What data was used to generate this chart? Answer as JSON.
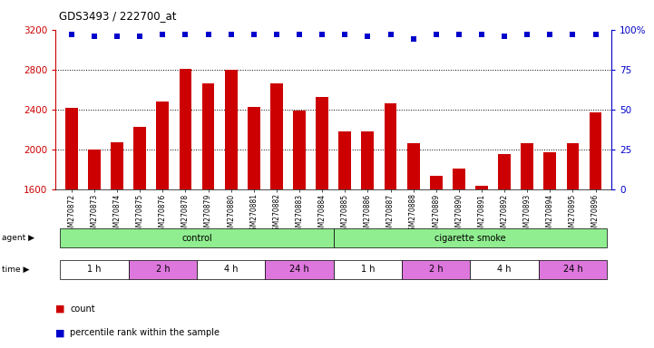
{
  "title": "GDS3493 / 222700_at",
  "samples": [
    "GSM270872",
    "GSM270873",
    "GSM270874",
    "GSM270875",
    "GSM270876",
    "GSM270878",
    "GSM270879",
    "GSM270880",
    "GSM270881",
    "GSM270882",
    "GSM270883",
    "GSM270884",
    "GSM270885",
    "GSM270886",
    "GSM270887",
    "GSM270888",
    "GSM270889",
    "GSM270890",
    "GSM270891",
    "GSM270892",
    "GSM270893",
    "GSM270894",
    "GSM270895",
    "GSM270896"
  ],
  "counts": [
    2420,
    2000,
    2070,
    2230,
    2480,
    2810,
    2660,
    2800,
    2430,
    2660,
    2390,
    2530,
    2180,
    2180,
    2460,
    2060,
    1740,
    1810,
    1640,
    1960,
    2060,
    1970,
    2060,
    2370
  ],
  "percentile_ranks": [
    97,
    96,
    96,
    96,
    97,
    97,
    97,
    97,
    97,
    97,
    97,
    97,
    97,
    96,
    97,
    94,
    97,
    97,
    97,
    96,
    97,
    97,
    97,
    97
  ],
  "bar_color": "#cc0000",
  "dot_color": "#0000cc",
  "ylim_left": [
    1600,
    3200
  ],
  "yticks_left": [
    1600,
    2000,
    2400,
    2800,
    3200
  ],
  "ylim_right": [
    0,
    100
  ],
  "yticks_right": [
    0,
    25,
    50,
    75,
    100
  ],
  "agent_spans": [
    {
      "label": "control",
      "start": 0,
      "end": 11,
      "color": "#90ee90"
    },
    {
      "label": "cigarette smoke",
      "start": 12,
      "end": 23,
      "color": "#90ee90"
    }
  ],
  "time_spans": [
    {
      "label": "1 h",
      "start": 0,
      "end": 2,
      "color": "#ffffff"
    },
    {
      "label": "2 h",
      "start": 3,
      "end": 5,
      "color": "#dd77dd"
    },
    {
      "label": "4 h",
      "start": 6,
      "end": 8,
      "color": "#ffffff"
    },
    {
      "label": "24 h",
      "start": 9,
      "end": 11,
      "color": "#dd77dd"
    },
    {
      "label": "1 h",
      "start": 12,
      "end": 14,
      "color": "#ffffff"
    },
    {
      "label": "2 h",
      "start": 15,
      "end": 17,
      "color": "#dd77dd"
    },
    {
      "label": "4 h",
      "start": 18,
      "end": 20,
      "color": "#ffffff"
    },
    {
      "label": "24 h",
      "start": 21,
      "end": 23,
      "color": "#dd77dd"
    }
  ],
  "legend_count_label": "count",
  "legend_pct_label": "percentile rank within the sample",
  "background_color": "#ffffff",
  "bar_width": 0.55,
  "grid_yticks": [
    2000,
    2400,
    2800
  ]
}
